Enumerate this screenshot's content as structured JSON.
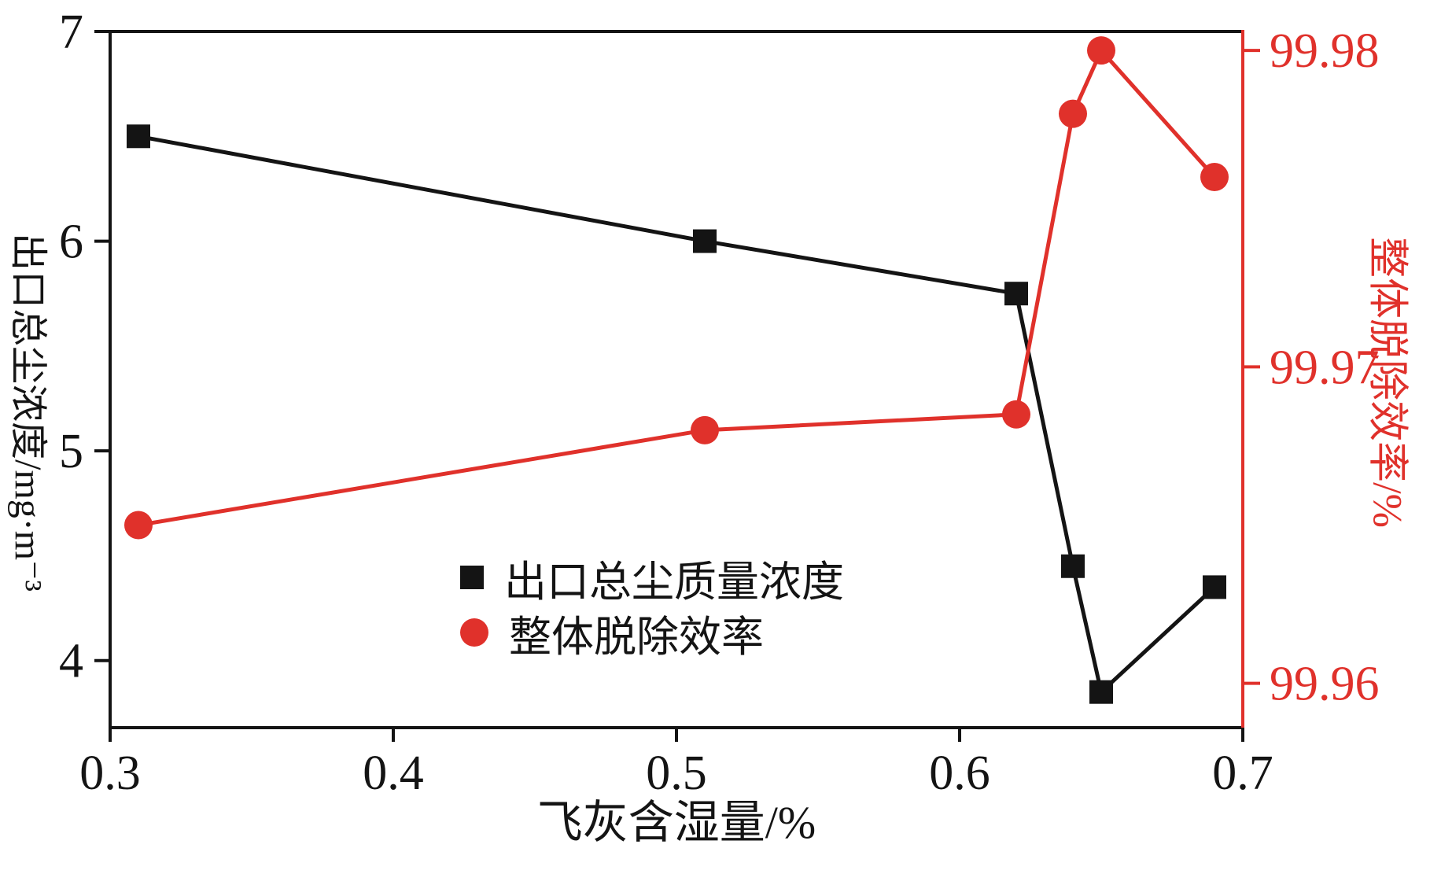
{
  "colors": {
    "background": "#ffffff",
    "axis_black": "#141414",
    "axis_red": "#e0312b"
  },
  "chart_data": {
    "type": "line",
    "title": "",
    "xlabel": "飞灰含湿量/%",
    "ylabel_left": "出口总尘浓度/mg·m⁻³",
    "ylabel_right": "整体脱除效率/%",
    "grid": false,
    "legend_position": "inside-bottom-center",
    "xlim": [
      0.3,
      0.7
    ],
    "x_ticks": [
      {
        "v": 0.3,
        "label": "0.3"
      },
      {
        "v": 0.4,
        "label": "0.4"
      },
      {
        "v": 0.5,
        "label": "0.5"
      },
      {
        "v": 0.6,
        "label": "0.6"
      },
      {
        "v": 0.7,
        "label": "0.7"
      }
    ],
    "y_left_lim": [
      3.68,
      7.0
    ],
    "y_left_ticks": [
      {
        "v": 4,
        "label": "4"
      },
      {
        "v": 5,
        "label": "5"
      },
      {
        "v": 6,
        "label": "6"
      },
      {
        "v": 7,
        "label": "7"
      }
    ],
    "y_right_lim": [
      99.9586,
      99.9806
    ],
    "y_right_ticks": [
      {
        "v": 99.96,
        "label": "99.96"
      },
      {
        "v": 99.97,
        "label": "99.97"
      },
      {
        "v": 99.98,
        "label": "99.98"
      }
    ],
    "series": [
      {
        "name": "出口总尘质量浓度",
        "axis": "left",
        "marker": "square",
        "color": "#141414",
        "x": [
          0.31,
          0.51,
          0.62,
          0.64,
          0.65,
          0.69
        ],
        "y": [
          6.5,
          6.0,
          5.75,
          4.45,
          3.85,
          4.35
        ]
      },
      {
        "name": "整体脱除效率",
        "axis": "right",
        "marker": "circle",
        "color": "#e0312b",
        "x": [
          0.31,
          0.51,
          0.62,
          0.64,
          0.65,
          0.69
        ],
        "y": [
          99.965,
          99.968,
          99.9685,
          99.978,
          99.98,
          99.976
        ]
      }
    ]
  }
}
